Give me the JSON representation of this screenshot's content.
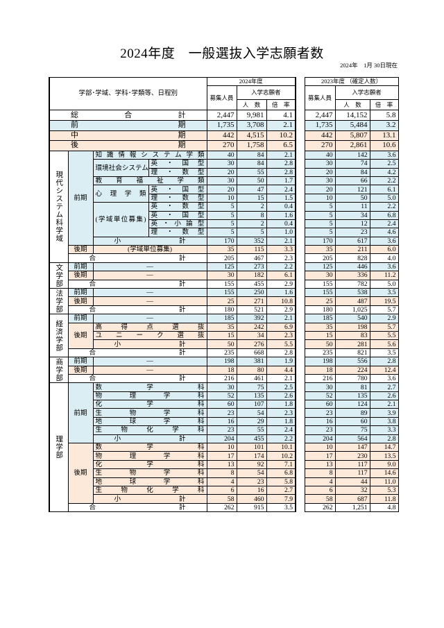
{
  "title": "2024年度　一般選抜入学志願者数",
  "as_of": "2024年　1月 30日現在",
  "colors": {
    "early": "#daeef3",
    "late": "#fde9d9",
    "total": "#ffffff"
  },
  "header": {
    "category_label": "学部･学域、学科･学類等、日程別",
    "year_2024": "2024年度",
    "year_2023": "2023年度 （確定人数）",
    "capacity": "募集人員",
    "applicants": "入学志願者",
    "count": "人　数",
    "ratio": "倍　率"
  },
  "summary": [
    {
      "label": "総　　合　　計",
      "color": "white",
      "values": [
        "2,447",
        "9,981",
        "4.1",
        "2,447",
        "14,152",
        "5.8"
      ]
    },
    {
      "label": "前　　期",
      "color": "blue",
      "values": [
        "1,735",
        "3,708",
        "2.1",
        "1,735",
        "5,484",
        "3.2"
      ]
    },
    {
      "label": "中　　期",
      "color": "orange",
      "values": [
        "442",
        "4,515",
        "10.2",
        "442",
        "5,807",
        "13.1"
      ]
    },
    {
      "label": "後　　期",
      "color": "orange",
      "values": [
        "270",
        "1,758",
        "6.5",
        "270",
        "2,861",
        "10.6"
      ]
    }
  ],
  "faculties": [
    {
      "name": "現代システム科学域",
      "periods": [
        {
          "name": "前期",
          "color": "blue",
          "items": [
            {
              "subject": "知識情報システム学類",
              "values": [
                "40",
                "84",
                "2.1",
                "40",
                "142",
                "3.6"
              ]
            },
            {
              "subject": "環境社会システム学類",
              "types": [
                {
                  "type": "英・国型",
                  "values": [
                    "30",
                    "84",
                    "2.8",
                    "30",
                    "74",
                    "2.5"
                  ]
                },
                {
                  "type": "理・数型",
                  "values": [
                    "20",
                    "55",
                    "2.8",
                    "20",
                    "84",
                    "4.2"
                  ]
                }
              ]
            },
            {
              "subject": "教育福祉学類",
              "values": [
                "30",
                "50",
                "1.7",
                "30",
                "66",
                "2.2"
              ]
            },
            {
              "subject": "心理学類",
              "types": [
                {
                  "type": "英・国型",
                  "values": [
                    "20",
                    "47",
                    "2.4",
                    "20",
                    "121",
                    "6.1"
                  ]
                },
                {
                  "type": "理・数型",
                  "values": [
                    "10",
                    "15",
                    "1.5",
                    "10",
                    "50",
                    "5.0"
                  ]
                }
              ]
            },
            {
              "subject": "(学域単位募集)",
              "types": [
                {
                  "type": "英・数型",
                  "values": [
                    "5",
                    "2",
                    "0.4",
                    "5",
                    "11",
                    "2.2"
                  ]
                },
                {
                  "type": "英・国型",
                  "values": [
                    "5",
                    "8",
                    "1.6",
                    "5",
                    "34",
                    "6.8"
                  ]
                },
                {
                  "type": "英・小論型",
                  "values": [
                    "5",
                    "2",
                    "0.4",
                    "5",
                    "12",
                    "2.4"
                  ]
                },
                {
                  "type": "理・数型",
                  "values": [
                    "5",
                    "5",
                    "1.0",
                    "5",
                    "23",
                    "4.6"
                  ]
                }
              ]
            }
          ],
          "subtotal": {
            "label": "小　　計",
            "values": [
              "170",
              "352",
              "2.1",
              "170",
              "617",
              "3.6"
            ]
          }
        },
        {
          "name": "後期",
          "color": "orange",
          "items": [
            {
              "subject": "(学域単位募集)",
              "values": [
                "35",
                "115",
                "3.3",
                "35",
                "211",
                "6.0"
              ]
            }
          ]
        }
      ],
      "total": {
        "label": "合　　計",
        "values": [
          "205",
          "467",
          "2.3",
          "205",
          "828",
          "4.0"
        ]
      }
    },
    {
      "name": "文学部",
      "periods": [
        {
          "name": "前期",
          "color": "blue",
          "items": [
            {
              "subject": "—",
              "values": [
                "125",
                "273",
                "2.2",
                "125",
                "446",
                "3.6"
              ]
            }
          ]
        },
        {
          "name": "後期",
          "color": "orange",
          "items": [
            {
              "subject": "—",
              "values": [
                "30",
                "182",
                "6.1",
                "30",
                "336",
                "11.2"
              ]
            }
          ]
        }
      ],
      "total": {
        "label": "合　　計",
        "values": [
          "155",
          "455",
          "2.9",
          "155",
          "782",
          "5.0"
        ]
      }
    },
    {
      "name": "法学部",
      "periods": [
        {
          "name": "前期",
          "color": "blue",
          "items": [
            {
              "subject": "—",
              "values": [
                "155",
                "250",
                "1.6",
                "155",
                "538",
                "3.5"
              ]
            }
          ]
        },
        {
          "name": "後期",
          "color": "orange",
          "items": [
            {
              "subject": "—",
              "values": [
                "25",
                "271",
                "10.8",
                "25",
                "487",
                "19.5"
              ]
            }
          ]
        }
      ],
      "total": {
        "label": "合　　計",
        "values": [
          "180",
          "521",
          "2.9",
          "180",
          "1,025",
          "5.7"
        ]
      }
    },
    {
      "name": "経済学部",
      "periods": [
        {
          "name": "前期",
          "color": "blue",
          "items": [
            {
              "subject": "—",
              "values": [
                "185",
                "392",
                "2.1",
                "185",
                "540",
                "2.9"
              ]
            }
          ]
        },
        {
          "name": "後期",
          "color": "orange",
          "items": [
            {
              "subject": "高得点選抜",
              "values": [
                "35",
                "242",
                "6.9",
                "35",
                "198",
                "5.7"
              ]
            },
            {
              "subject": "ユニーク選抜",
              "values": [
                "15",
                "34",
                "2.3",
                "15",
                "83",
                "5.5"
              ]
            }
          ],
          "subtotal": {
            "label": "小　　計",
            "values": [
              "50",
              "276",
              "5.5",
              "50",
              "281",
              "5.6"
            ]
          }
        }
      ],
      "total": {
        "label": "合　　計",
        "values": [
          "235",
          "668",
          "2.8",
          "235",
          "821",
          "3.5"
        ]
      }
    },
    {
      "name": "商学部",
      "periods": [
        {
          "name": "前期",
          "color": "blue",
          "items": [
            {
              "subject": "—",
              "values": [
                "198",
                "381",
                "1.9",
                "198",
                "556",
                "2.8"
              ]
            }
          ]
        },
        {
          "name": "後期",
          "color": "orange",
          "items": [
            {
              "subject": "—",
              "values": [
                "18",
                "80",
                "4.4",
                "18",
                "224",
                "12.4"
              ]
            }
          ]
        }
      ],
      "total": {
        "label": "合　　計",
        "values": [
          "216",
          "461",
          "2.1",
          "216",
          "780",
          "3.6"
        ]
      }
    },
    {
      "name": "理学部",
      "periods": [
        {
          "name": "前期",
          "color": "blue",
          "items": [
            {
              "subject": "数学科",
              "values": [
                "30",
                "75",
                "2.5",
                "30",
                "81",
                "2.7"
              ]
            },
            {
              "subject": "物理学科",
              "values": [
                "52",
                "135",
                "2.6",
                "52",
                "135",
                "2.6"
              ]
            },
            {
              "subject": "化学科",
              "values": [
                "60",
                "107",
                "1.8",
                "60",
                "124",
                "2.1"
              ]
            },
            {
              "subject": "生物学科",
              "values": [
                "23",
                "54",
                "2.3",
                "23",
                "89",
                "3.9"
              ]
            },
            {
              "subject": "地球学科",
              "values": [
                "16",
                "29",
                "1.8",
                "16",
                "60",
                "3.8"
              ]
            },
            {
              "subject": "生物化学科",
              "values": [
                "23",
                "55",
                "2.4",
                "23",
                "75",
                "3.3"
              ]
            }
          ],
          "subtotal": {
            "label": "小　　計",
            "values": [
              "204",
              "455",
              "2.2",
              "204",
              "564",
              "2.8"
            ]
          }
        },
        {
          "name": "後期",
          "color": "orange",
          "items": [
            {
              "subject": "数学科",
              "values": [
                "10",
                "101",
                "10.1",
                "10",
                "147",
                "14.7"
              ]
            },
            {
              "subject": "物理学科",
              "values": [
                "17",
                "174",
                "10.2",
                "17",
                "230",
                "13.5"
              ]
            },
            {
              "subject": "化学科",
              "values": [
                "13",
                "92",
                "7.1",
                "13",
                "117",
                "9.0"
              ]
            },
            {
              "subject": "生物学科",
              "values": [
                "8",
                "54",
                "6.8",
                "8",
                "117",
                "14.6"
              ]
            },
            {
              "subject": "地球学科",
              "values": [
                "4",
                "23",
                "5.8",
                "4",
                "44",
                "11.0"
              ]
            },
            {
              "subject": "生物化学科",
              "values": [
                "6",
                "16",
                "2.7",
                "6",
                "32",
                "5.3"
              ]
            }
          ],
          "subtotal": {
            "label": "小　　計",
            "values": [
              "58",
              "460",
              "7.9",
              "58",
              "687",
              "11.8"
            ]
          }
        }
      ],
      "total": {
        "label": "合　　計",
        "values": [
          "262",
          "915",
          "3.5",
          "262",
          "1,251",
          "4.8"
        ]
      }
    }
  ]
}
